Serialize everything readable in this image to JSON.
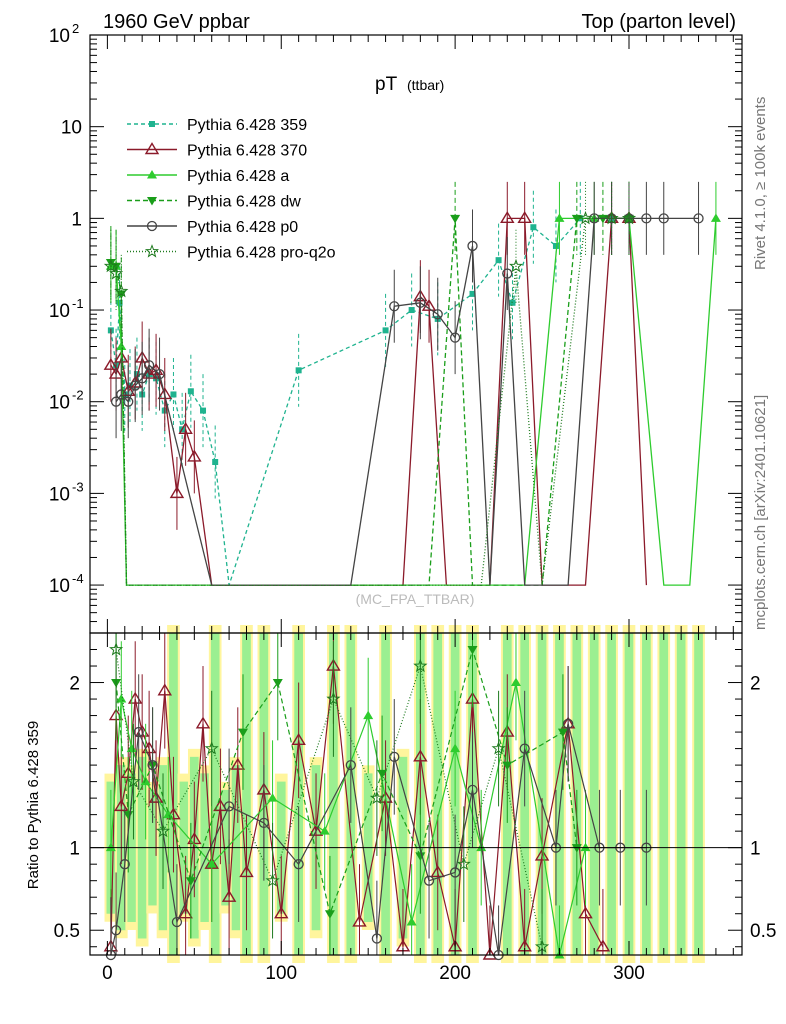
{
  "header": {
    "left": "1960 GeV ppbar",
    "right": "Top (parton level)"
  },
  "side": {
    "rivet": "Rivet 4.1.0, ≥ 100k events",
    "mcplots": "mcplots.cern.ch [arXiv:2401.10621]"
  },
  "chart_data": {
    "type": "line",
    "title_main": "pT",
    "title_sub": "(ttbar)",
    "watermark": "(MC_FPA_TTBAR)",
    "ratio_ylabel": "Ratio to Pythia 6.428 359",
    "xlim": [
      -10,
      365
    ],
    "ylim_main": [
      3e-05,
      100
    ],
    "ylim_ratio": [
      0.35,
      2.3
    ],
    "log_y_main": true,
    "x_ticks": [
      "0",
      "100",
      "200",
      "300"
    ],
    "y_ticks_main": [
      {
        "base": "10",
        "exp": "-4",
        "v": 0.0001
      },
      {
        "base": "10",
        "exp": "-3",
        "v": 0.001
      },
      {
        "base": "10",
        "exp": "-2",
        "v": 0.01
      },
      {
        "base": "10",
        "exp": "-1",
        "v": 0.1
      },
      {
        "base": "1",
        "exp": "",
        "v": 1
      },
      {
        "base": "10",
        "exp": "",
        "v": 10
      },
      {
        "base": "10",
        "exp": "2",
        "v": 100
      }
    ],
    "y_ticks_ratio": [
      "0.5",
      "1",
      "2"
    ],
    "series": [
      {
        "name": "Pythia 6.428 359",
        "color": "#1fb38f",
        "dash": "4,3",
        "marker": "square",
        "x": [
          2,
          5,
          7,
          10,
          13,
          17,
          20,
          24,
          28,
          33,
          38,
          43,
          48,
          55,
          62,
          70,
          110,
          160,
          175,
          190,
          210,
          225,
          233,
          245,
          258,
          272,
          290,
          300
        ],
        "y": [
          0.06,
          0.025,
          0.12,
          0.012,
          0.015,
          0.02,
          0.012,
          0.02,
          0.018,
          0.008,
          0.012,
          0.005,
          0.013,
          0.008,
          0.0022,
          0.0001,
          0.022,
          0.06,
          0.1,
          0.08,
          0.15,
          0.35,
          0.12,
          0.8,
          0.5,
          1.0,
          1.0,
          1.0
        ]
      },
      {
        "name": "Pythia 6.428 370",
        "color": "#8b1a2a",
        "dash": "",
        "marker": "triangle-open",
        "x": [
          2,
          5,
          8,
          12,
          16,
          20,
          24,
          28,
          33,
          40,
          45,
          50,
          60,
          80,
          100,
          120,
          140,
          160,
          170,
          180,
          185,
          195,
          210,
          220,
          230,
          240,
          250,
          262,
          275,
          290,
          300,
          310
        ],
        "y": [
          0.025,
          0.02,
          0.03,
          0.013,
          0.016,
          0.03,
          0.02,
          0.022,
          0.012,
          0.001,
          0.005,
          0.0025,
          0.0001,
          0.0001,
          0.0001,
          0.0001,
          0.0001,
          0.0001,
          0.0001,
          0.14,
          0.11,
          0.0001,
          0.0001,
          0.0001,
          1.0,
          1.0,
          0.0001,
          0.0001,
          0.0001,
          1.0,
          1.0,
          0.0001
        ]
      },
      {
        "name": "Pythia 6.428 a",
        "color": "#2ecc2e",
        "dash": "",
        "marker": "triangle",
        "x": [
          2,
          5,
          8,
          11,
          15,
          20,
          25,
          30,
          150,
          170,
          190,
          200,
          215,
          230,
          240,
          260,
          280,
          300,
          320,
          335,
          350
        ],
        "y": [
          0.3,
          0.3,
          0.04,
          0.0001,
          0.0001,
          0.0001,
          0.0001,
          0.0001,
          0.0001,
          0.0001,
          0.0001,
          0.0001,
          0.0001,
          0.0001,
          0.0001,
          1.0,
          1.0,
          1.0,
          0.0001,
          0.0001,
          1.0
        ]
      },
      {
        "name": "Pythia 6.428 dw",
        "color": "#1a9e1a",
        "dash": "5,3",
        "marker": "triangle-down",
        "x": [
          2,
          5,
          8,
          11,
          15,
          20,
          30,
          60,
          100,
          140,
          155,
          175,
          185,
          200,
          210,
          220,
          235,
          250,
          270,
          285,
          300
        ],
        "y": [
          0.33,
          0.3,
          0.15,
          0.0001,
          0.0001,
          0.0001,
          0.0001,
          0.0001,
          0.0001,
          0.0001,
          0.0001,
          0.0001,
          0.0001,
          1.0,
          0.0001,
          0.0001,
          0.0001,
          0.0001,
          1.0,
          1.0,
          1.0
        ]
      },
      {
        "name": "Pythia 6.428 p0",
        "color": "#444444",
        "dash": "",
        "marker": "circle-open",
        "x": [
          5,
          8,
          12,
          16,
          20,
          24,
          30,
          60,
          100,
          140,
          165,
          180,
          190,
          200,
          210,
          220,
          230,
          240,
          255,
          265,
          280,
          290,
          300,
          310,
          320,
          340
        ],
        "y": [
          0.01,
          0.012,
          0.01,
          0.015,
          0.018,
          0.025,
          0.02,
          0.0001,
          0.0001,
          0.0001,
          0.11,
          0.12,
          0.09,
          0.05,
          0.5,
          0.0001,
          0.25,
          0.0001,
          0.0001,
          0.0001,
          1.0,
          1.0,
          1.0,
          1.0,
          1.0,
          1.0
        ]
      },
      {
        "name": "Pythia 6.428 pro-q2o",
        "color": "#1e7a1e",
        "dash": "1,2",
        "marker": "star",
        "x": [
          2,
          5,
          8,
          11,
          15,
          20,
          40,
          80,
          120,
          160,
          180,
          200,
          215,
          235,
          250,
          275,
          290,
          300
        ],
        "y": [
          0.3,
          0.25,
          0.16,
          0.0001,
          0.0001,
          0.0001,
          0.0001,
          0.0001,
          0.0001,
          0.0001,
          0.0001,
          0.0001,
          0.0001,
          0.3,
          0.0001,
          1.0,
          1.0,
          1.0
        ]
      }
    ],
    "ratio_series": [
      {
        "name": "Pythia 6.428 370",
        "x": [
          2,
          5,
          8,
          12,
          16,
          20,
          24,
          28,
          33,
          38,
          45,
          50,
          55,
          60,
          65,
          70,
          75,
          80,
          90,
          100,
          110,
          120,
          130,
          145,
          160,
          170,
          180,
          190,
          200,
          210,
          220,
          230,
          240,
          250,
          265,
          275,
          285
        ],
        "y": [
          0.4,
          1.8,
          1.25,
          1.45,
          1.9,
          1.7,
          1.6,
          1.3,
          1.95,
          1.2,
          0.6,
          1.05,
          1.75,
          0.9,
          1.25,
          0.7,
          1.5,
          0.85,
          1.35,
          0.6,
          1.65,
          1.1,
          2.1,
          0.55,
          1.3,
          0.4,
          1.55,
          0.85,
          0.4,
          1.9,
          0.3,
          1.7,
          0.4,
          0.95,
          1.75,
          0.6,
          0.4
        ]
      },
      {
        "name": "Pythia 6.428 a",
        "x": [
          2,
          8,
          14,
          22,
          35,
          60,
          95,
          125,
          150,
          175,
          200,
          215,
          235,
          260,
          275
        ],
        "y": [
          1.0,
          1.9,
          1.6,
          1.4,
          1.2,
          0.9,
          1.3,
          1.1,
          1.8,
          0.55,
          1.6,
          1.0,
          2.0,
          0.3,
          1.0
        ]
      },
      {
        "name": "Pythia 6.428 dw",
        "x": [
          5,
          12,
          26,
          48,
          78,
          98,
          128,
          158,
          180,
          210,
          230,
          262,
          270
        ],
        "y": [
          2.0,
          1.2,
          1.5,
          0.8,
          1.7,
          2.0,
          0.6,
          1.45,
          0.95,
          2.2,
          1.5,
          1.7,
          1.0
        ]
      },
      {
        "name": "Pythia 6.428 p0",
        "x": [
          2,
          5,
          10,
          18,
          26,
          40,
          70,
          90,
          110,
          140,
          155,
          165,
          185,
          200,
          210,
          225,
          240,
          258,
          265,
          283,
          295,
          310
        ],
        "y": [
          0.35,
          0.5,
          0.9,
          1.7,
          1.5,
          0.55,
          1.25,
          1.15,
          0.9,
          1.5,
          0.45,
          1.55,
          0.8,
          0.85,
          1.35,
          0.3,
          1.6,
          1.0,
          1.75,
          1.0,
          1.0,
          1.0
        ]
      },
      {
        "name": "Pythia 6.428 pro-q2o",
        "x": [
          5,
          15,
          32,
          60,
          95,
          130,
          155,
          180,
          205,
          225,
          250
        ],
        "y": [
          2.2,
          1.4,
          1.1,
          1.6,
          0.8,
          1.9,
          1.3,
          2.1,
          0.9,
          1.6,
          0.4
        ]
      }
    ],
    "ratio_bands": {
      "x": [
        2,
        8,
        14,
        20,
        26,
        32,
        38,
        44,
        50,
        56,
        62,
        68,
        74,
        80,
        90,
        100,
        110,
        120,
        130,
        140,
        150,
        160,
        170,
        180,
        190,
        200,
        210,
        230,
        240,
        250,
        260,
        270,
        280,
        290,
        300,
        310,
        320,
        330,
        340
      ],
      "lo": [
        0.6,
        0.5,
        0.55,
        0.45,
        0.65,
        0.5,
        0.35,
        0.6,
        0.45,
        0.55,
        0.35,
        0.65,
        0.5,
        0.35,
        0.35,
        0.6,
        0.35,
        0.5,
        0.35,
        0.35,
        0.55,
        0.35,
        0.45,
        0.35,
        0.35,
        0.35,
        0.35,
        0.35,
        0.35,
        0.35,
        0.35,
        0.35,
        0.35,
        0.35,
        0.35,
        0.35,
        0.35,
        0.35,
        0.35
      ],
      "hi": [
        1.4,
        1.5,
        1.45,
        1.55,
        1.35,
        1.5,
        2.3,
        1.4,
        1.55,
        1.45,
        2.3,
        1.35,
        1.5,
        2.3,
        2.3,
        1.4,
        2.3,
        1.5,
        2.3,
        2.3,
        1.45,
        2.3,
        1.55,
        2.3,
        2.3,
        2.3,
        2.3,
        2.3,
        2.3,
        2.3,
        2.3,
        2.3,
        2.3,
        2.3,
        2.3,
        2.3,
        2.3,
        2.3,
        2.3
      ]
    }
  }
}
